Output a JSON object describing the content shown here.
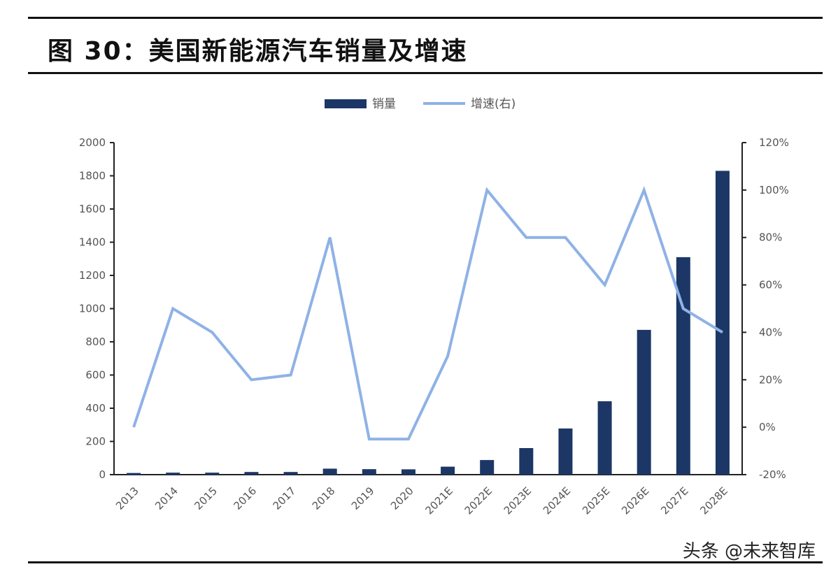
{
  "figure": {
    "title": "图 30：美国新能源汽车销量及增速",
    "watermark": "头条 @未来智库"
  },
  "colors": {
    "bar": "#1c3766",
    "line": "#8fb2e6",
    "axis": "#222222"
  },
  "chart_data": {
    "type": "bar",
    "categories": [
      "2013",
      "2014",
      "2015",
      "2016",
      "2017",
      "2018",
      "2019",
      "2020",
      "2021E",
      "2022E",
      "2023E",
      "2024E",
      "2025E",
      "2026E",
      "2027E",
      "2028E"
    ],
    "series": [
      {
        "name": "销量",
        "type": "bar",
        "axis": "left",
        "values": [
          10,
          12,
          12,
          16,
          16,
          36,
          33,
          32,
          48,
          88,
          160,
          278,
          442,
          872,
          1310,
          1830
        ]
      },
      {
        "name": "增速(右)",
        "type": "line",
        "axis": "right",
        "values": [
          0,
          50,
          40,
          20,
          22,
          80,
          -5,
          -5,
          30,
          100,
          80,
          80,
          60,
          100,
          50,
          40
        ]
      }
    ],
    "left_axis": {
      "ylim": [
        0,
        2000
      ],
      "tick_labels": [
        "0",
        "200",
        "400",
        "600",
        "800",
        "1000",
        "1200",
        "1400",
        "1600",
        "1800",
        "2000"
      ]
    },
    "right_axis": {
      "ylim": [
        -20,
        120
      ],
      "tick_labels": [
        "-20%",
        "0%",
        "20%",
        "40%",
        "60%",
        "80%",
        "100%",
        "120%"
      ]
    },
    "legend_position": "top-center",
    "grid": false
  }
}
